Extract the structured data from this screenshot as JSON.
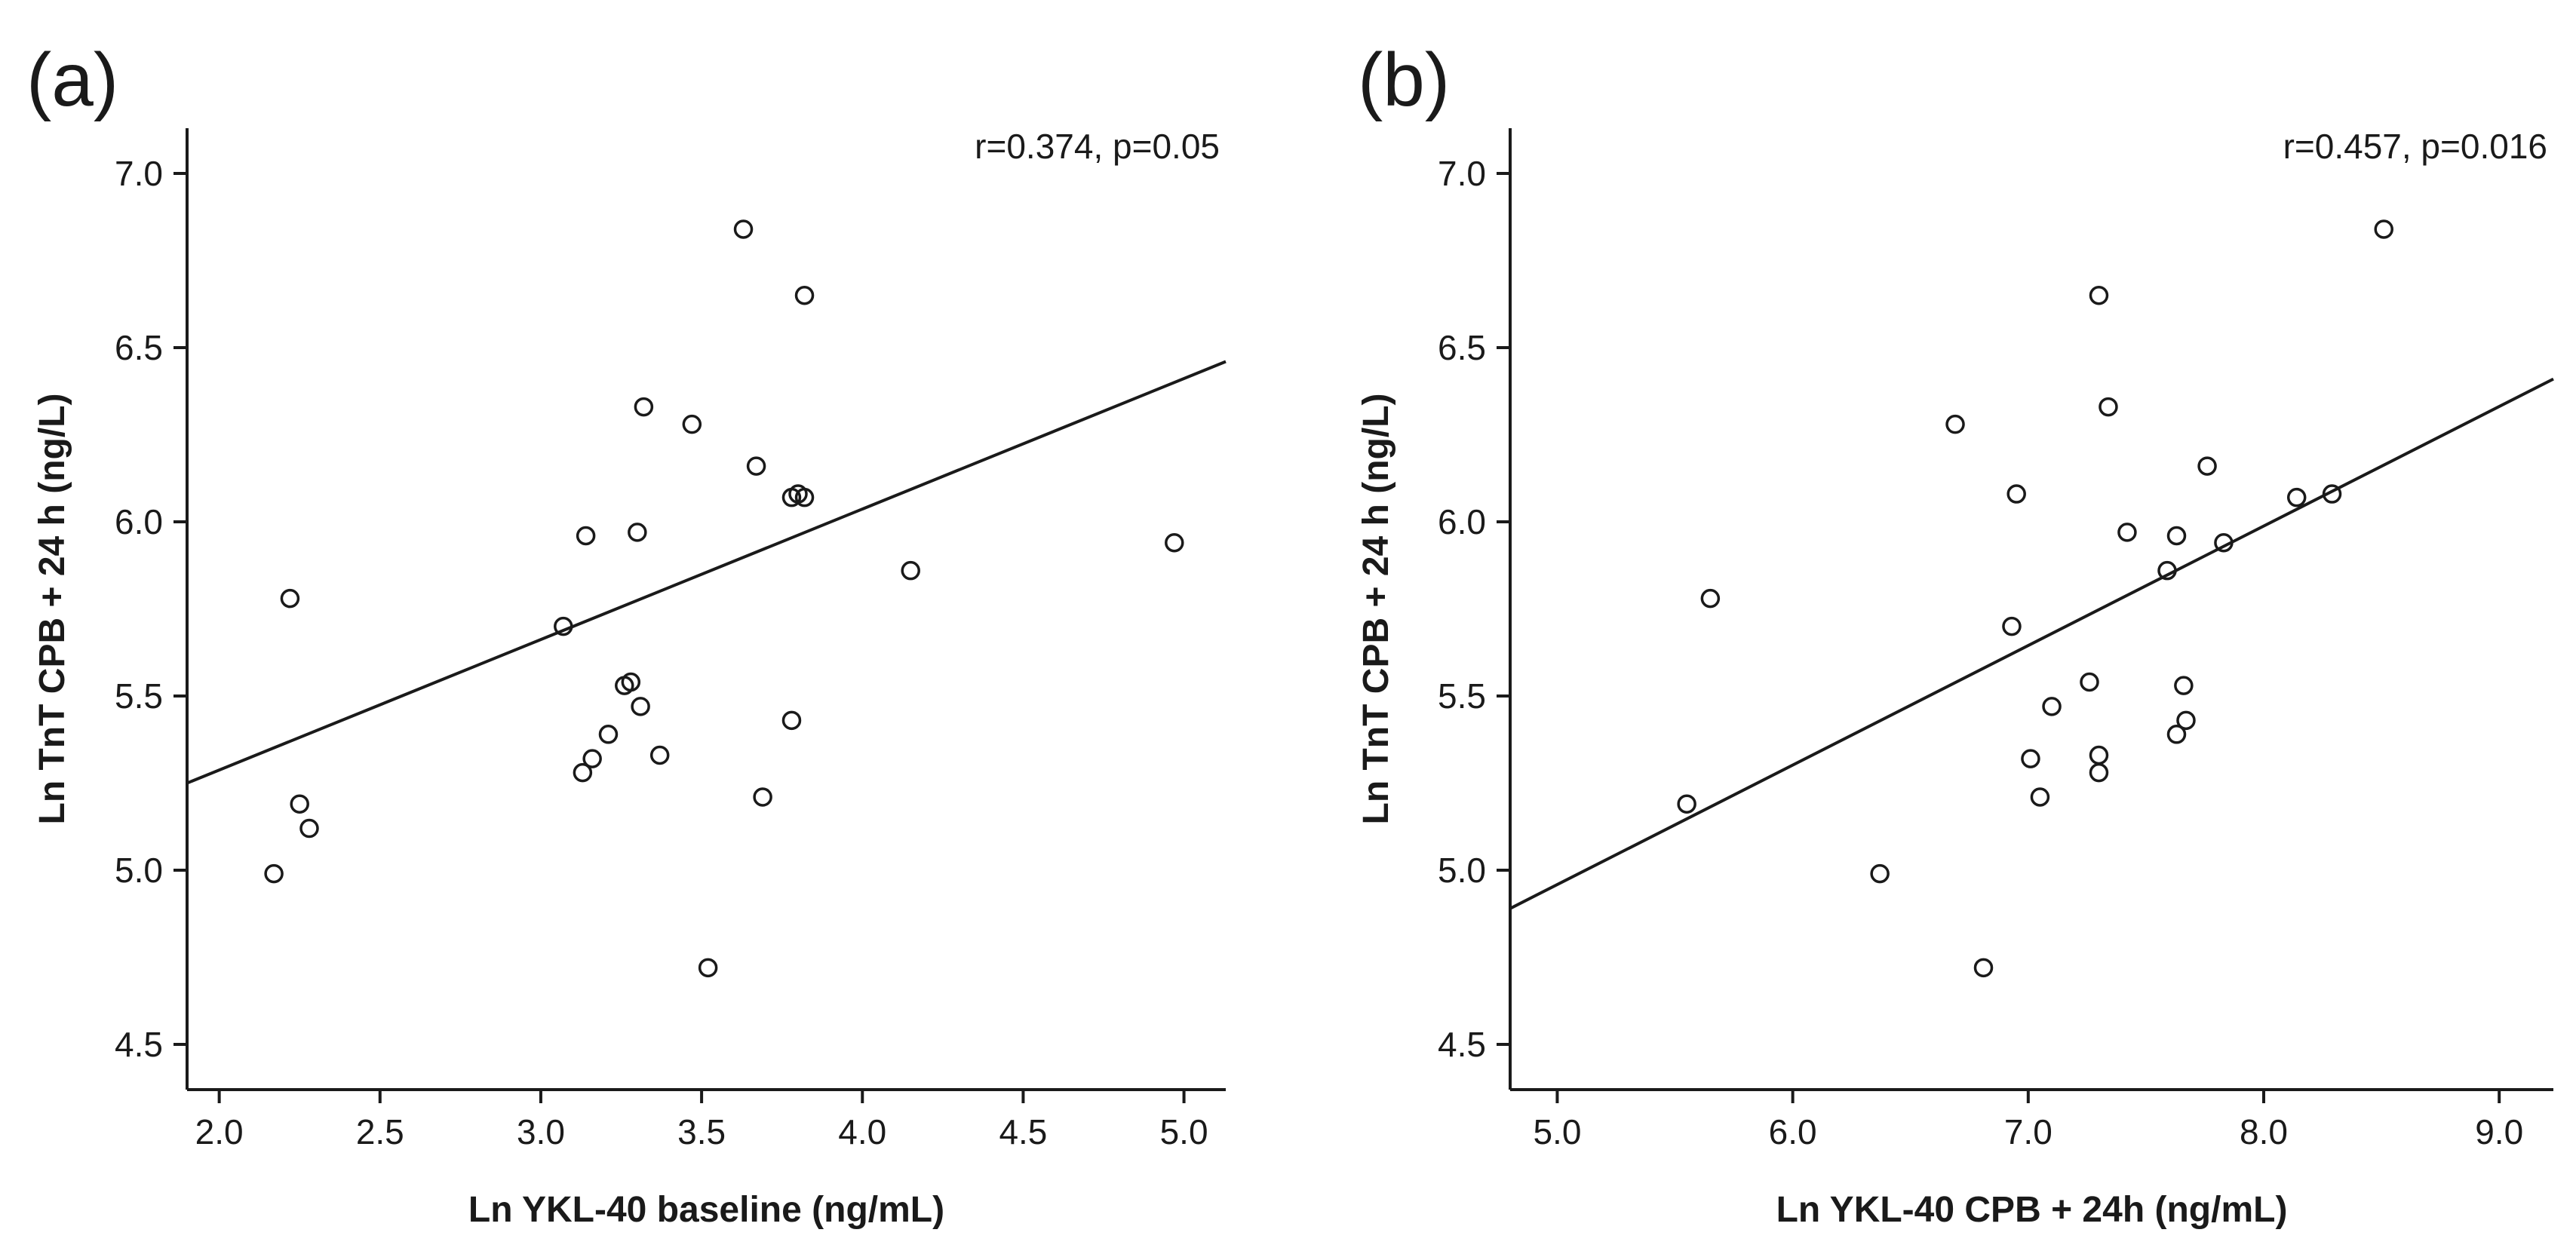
{
  "chart_data": [
    {
      "type": "scatter",
      "panel_label": "(a)",
      "title": "",
      "annotation": "r=0.374, p=0.05",
      "xlabel": "Ln YKL-40 baseline (ng/mL)",
      "ylabel": "Ln TnT CPB + 24 h (ng/L)",
      "xlim": [
        1.9,
        5.13
      ],
      "ylim": [
        4.37,
        7.13
      ],
      "xticks": [
        2.0,
        2.5,
        3.0,
        3.5,
        4.0,
        4.5,
        5.0
      ],
      "xtick_labels": [
        "2.0",
        "2.5",
        "3.0",
        "3.5",
        "4.0",
        "4.5",
        "5.0"
      ],
      "yticks": [
        4.5,
        5.0,
        5.5,
        6.0,
        6.5,
        7.0
      ],
      "ytick_labels": [
        "4.5",
        "5.0",
        "5.5",
        "6.0",
        "6.5",
        "7.0"
      ],
      "grid": false,
      "legend": "none",
      "x": [
        2.17,
        2.22,
        2.25,
        2.28,
        3.07,
        3.13,
        3.14,
        3.16,
        3.21,
        3.26,
        3.28,
        3.3,
        3.31,
        3.32,
        3.37,
        3.47,
        3.52,
        3.63,
        3.67,
        3.69,
        3.78,
        3.78,
        3.8,
        3.82,
        3.82,
        4.15,
        4.97
      ],
      "y": [
        4.99,
        5.78,
        5.19,
        5.12,
        5.7,
        5.28,
        5.96,
        5.32,
        5.39,
        5.53,
        5.54,
        5.97,
        5.47,
        6.33,
        5.33,
        6.28,
        4.72,
        6.84,
        6.16,
        5.21,
        5.43,
        6.07,
        6.08,
        6.07,
        6.65,
        5.86,
        5.94
      ],
      "regression": {
        "x": [
          1.9,
          5.13
        ],
        "y": [
          5.25,
          6.46
        ]
      }
    },
    {
      "type": "scatter",
      "panel_label": "(b)",
      "title": "",
      "annotation": "r=0.457, p=0.016",
      "xlabel": "Ln YKL-40 CPB + 24h (ng/mL)",
      "ylabel": "Ln TnT CPB + 24 h (ng/L)",
      "xlim": [
        4.8,
        9.23
      ],
      "ylim": [
        4.37,
        7.13
      ],
      "xticks": [
        5.0,
        6.0,
        7.0,
        8.0,
        9.0
      ],
      "xtick_labels": [
        "5.0",
        "6.0",
        "7.0",
        "8.0",
        "9.0"
      ],
      "yticks": [
        4.5,
        5.0,
        5.5,
        6.0,
        6.5,
        7.0
      ],
      "ytick_labels": [
        "4.5",
        "5.0",
        "5.5",
        "6.0",
        "6.5",
        "7.0"
      ],
      "grid": false,
      "legend": "none",
      "x": [
        5.55,
        5.65,
        6.37,
        6.69,
        6.81,
        6.93,
        6.95,
        7.01,
        7.05,
        7.1,
        7.26,
        7.3,
        7.3,
        7.3,
        7.34,
        7.42,
        7.59,
        7.63,
        7.63,
        7.66,
        7.67,
        7.76,
        7.83,
        8.14,
        8.29,
        8.51
      ],
      "y": [
        5.19,
        5.78,
        4.99,
        6.28,
        4.72,
        5.7,
        6.08,
        5.32,
        5.21,
        5.47,
        5.54,
        5.28,
        5.33,
        6.65,
        6.33,
        5.97,
        5.86,
        5.39,
        5.96,
        5.53,
        5.43,
        6.16,
        5.94,
        6.07,
        6.08,
        6.84
      ],
      "regression": {
        "x": [
          4.8,
          9.23
        ],
        "y": [
          4.89,
          6.41
        ]
      }
    }
  ]
}
